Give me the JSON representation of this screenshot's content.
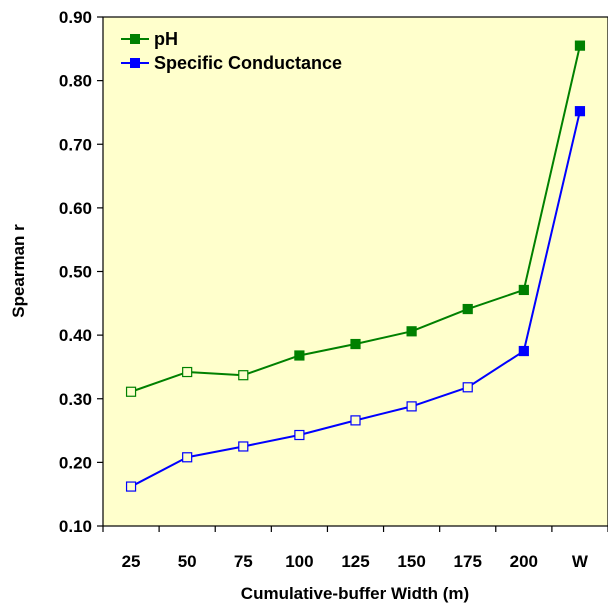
{
  "chart_data": {
    "type": "line",
    "xlabel": "Cumulative-buffer Width (m)",
    "ylabel": "Spearman r",
    "categories": [
      "25",
      "50",
      "75",
      "100",
      "125",
      "150",
      "175",
      "200",
      "W"
    ],
    "ylim": [
      0.1,
      0.9
    ],
    "yticks": [
      "0.10",
      "0.20",
      "0.30",
      "0.40",
      "0.50",
      "0.60",
      "0.70",
      "0.80",
      "0.90"
    ],
    "grid": false,
    "legend_position": "top-left",
    "plot_background": "#FFFFCC",
    "series": [
      {
        "name": "pH",
        "color": "#008000",
        "values": [
          0.311,
          0.342,
          0.337,
          0.368,
          0.386,
          0.406,
          0.441,
          0.471,
          0.855
        ],
        "marker_filled": [
          false,
          false,
          false,
          true,
          true,
          true,
          true,
          true,
          true
        ]
      },
      {
        "name": "Specific Conductance",
        "color": "#0000FF",
        "values": [
          0.162,
          0.208,
          0.225,
          0.243,
          0.266,
          0.288,
          0.318,
          0.375,
          0.752
        ],
        "marker_filled": [
          false,
          false,
          false,
          false,
          false,
          false,
          false,
          true,
          true
        ]
      }
    ]
  }
}
